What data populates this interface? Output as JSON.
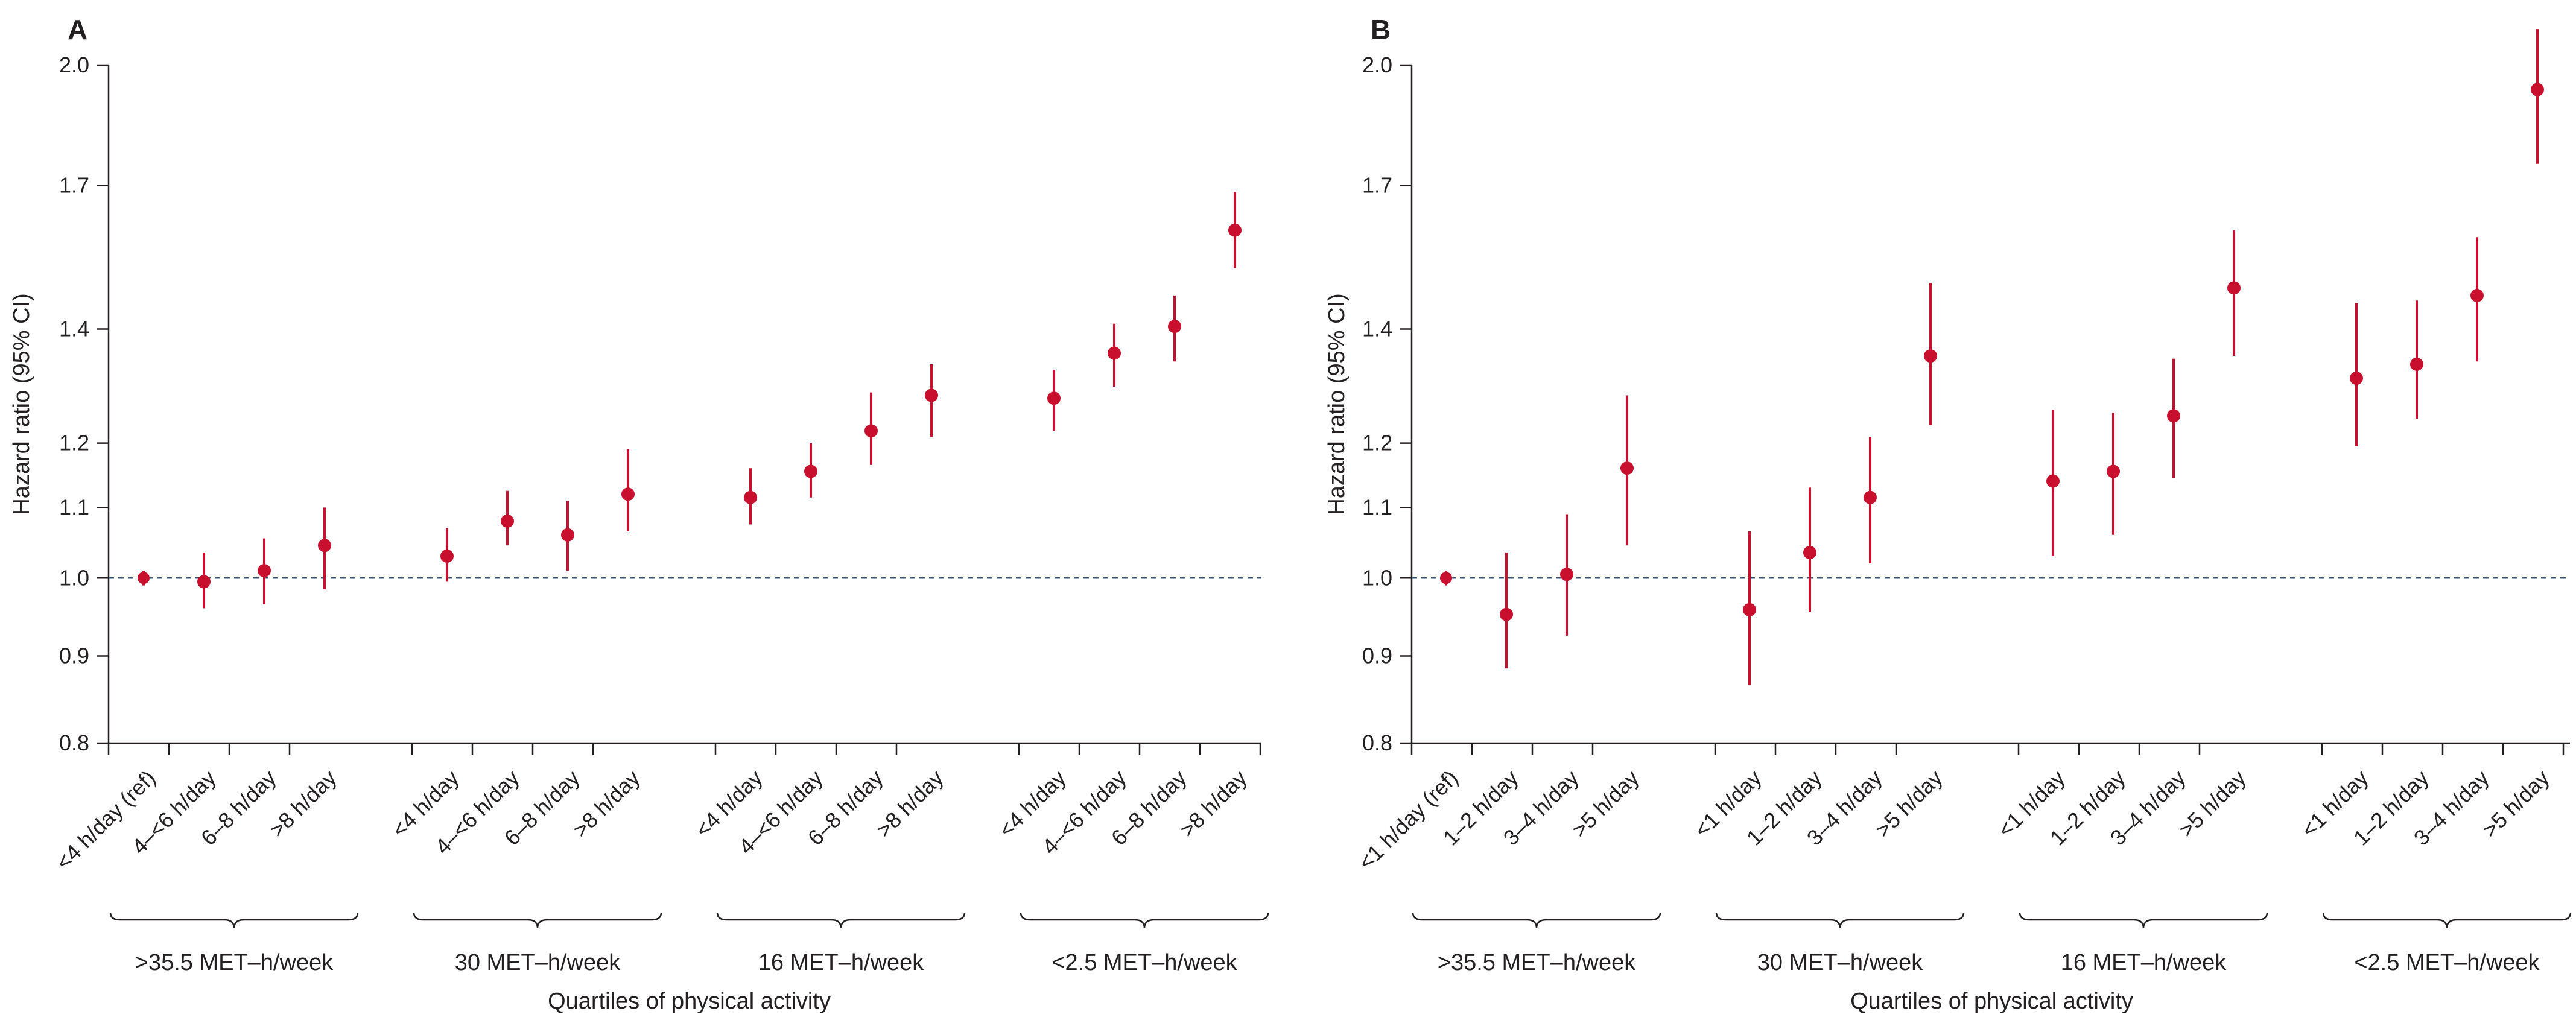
{
  "chart_data": [
    {
      "panel": "A",
      "type": "scatter",
      "subtype": "point-range (hazard ratio with 95% CI), log-scaled y-axis",
      "ylabel": "Hazard ratio (95% CI)",
      "xlabel": "Quartiles of physical activity",
      "ylim": [
        0.8,
        2.0
      ],
      "yticks": [
        0.8,
        0.9,
        1.0,
        1.1,
        1.2,
        1.4,
        1.7,
        2.0
      ],
      "ytick_labels": [
        "0.8",
        "0.9",
        "1.0",
        "1.1",
        "1.2",
        "1.4",
        "1.7",
        "2.0"
      ],
      "reference_line": 1.0,
      "groups": [
        {
          "label": ">35.5 MET–h/week",
          "categories": [
            "<4 h/day (ref)",
            "4–<6 h/day",
            "6–8 h/day",
            ">8 h/day"
          ],
          "hr": [
            1.0,
            0.995,
            1.01,
            1.045
          ],
          "lower": [
            0.99,
            0.96,
            0.965,
            0.985
          ],
          "upper": [
            1.01,
            1.035,
            1.055,
            1.1
          ]
        },
        {
          "label": "30 MET–h/week",
          "categories": [
            "<4 h/day",
            "4–<6 h/day",
            "6–8 h/day",
            ">8 h/day"
          ],
          "hr": [
            1.03,
            1.08,
            1.06,
            1.12
          ],
          "lower": [
            0.995,
            1.045,
            1.01,
            1.065
          ],
          "upper": [
            1.07,
            1.125,
            1.11,
            1.19
          ]
        },
        {
          "label": "16 MET–h/week",
          "categories": [
            "<4 h/day",
            "4–<6 h/day",
            "6–8 h/day",
            ">8 h/day"
          ],
          "hr": [
            1.115,
            1.155,
            1.22,
            1.28
          ],
          "lower": [
            1.075,
            1.115,
            1.165,
            1.21
          ],
          "upper": [
            1.16,
            1.2,
            1.285,
            1.335
          ]
        },
        {
          "label": "<2.5 MET–h/week",
          "categories": [
            "<4 h/day",
            "4–<6 h/day",
            "6–8 h/day",
            ">8 h/day"
          ],
          "hr": [
            1.275,
            1.355,
            1.405,
            1.6
          ],
          "lower": [
            1.22,
            1.295,
            1.34,
            1.52
          ],
          "upper": [
            1.325,
            1.41,
            1.465,
            1.685
          ]
        }
      ]
    },
    {
      "panel": "B",
      "type": "scatter",
      "subtype": "point-range (hazard ratio with 95% CI), log-scaled y-axis",
      "ylabel": "Hazard ratio (95% CI)",
      "xlabel": "Quartiles of physical activity",
      "ylim": [
        0.8,
        2.0
      ],
      "yticks": [
        0.8,
        0.9,
        1.0,
        1.1,
        1.2,
        1.4,
        1.7,
        2.0
      ],
      "ytick_labels": [
        "0.8",
        "0.9",
        "1.0",
        "1.1",
        "1.2",
        "1.4",
        "1.7",
        "2.0"
      ],
      "reference_line": 1.0,
      "groups": [
        {
          "label": ">35.5 MET–h/week",
          "categories": [
            "<1 h/day (ref)",
            "1–2 h/day",
            "3–4 h/day",
            ">5 h/day"
          ],
          "hr": [
            1.0,
            0.952,
            1.005,
            1.16
          ],
          "lower": [
            0.99,
            0.885,
            0.925,
            1.045
          ],
          "upper": [
            1.01,
            1.035,
            1.09,
            1.28
          ]
        },
        {
          "label": "30 MET–h/week",
          "categories": [
            "<1 h/day",
            "1–2 h/day",
            "3–4 h/day",
            ">5 h/day"
          ],
          "hr": [
            0.958,
            1.035,
            1.115,
            1.35
          ],
          "lower": [
            0.865,
            0.955,
            1.02,
            1.23
          ],
          "upper": [
            1.065,
            1.13,
            1.21,
            1.49
          ]
        },
        {
          "label": "16 MET–h/week",
          "categories": [
            "<1 h/day",
            "1–2 h/day",
            "3–4 h/day",
            ">5 h/day"
          ],
          "hr": [
            1.14,
            1.155,
            1.245,
            1.48
          ],
          "lower": [
            1.03,
            1.06,
            1.145,
            1.35
          ],
          "upper": [
            1.255,
            1.25,
            1.345,
            1.6
          ]
        },
        {
          "label": "<2.5 MET–h/week",
          "categories": [
            "<1 h/day",
            "1–2 h/day",
            "3–4 h/day",
            ">5 h/day"
          ],
          "hr": [
            1.31,
            1.335,
            1.465,
            1.935
          ],
          "lower": [
            1.195,
            1.24,
            1.34,
            1.75
          ],
          "upper": [
            1.45,
            1.455,
            1.585,
            2.1
          ]
        }
      ]
    }
  ],
  "colors": {
    "point": "#c8102e",
    "axis": "#231f20",
    "reference_line": "#3c5a78"
  }
}
